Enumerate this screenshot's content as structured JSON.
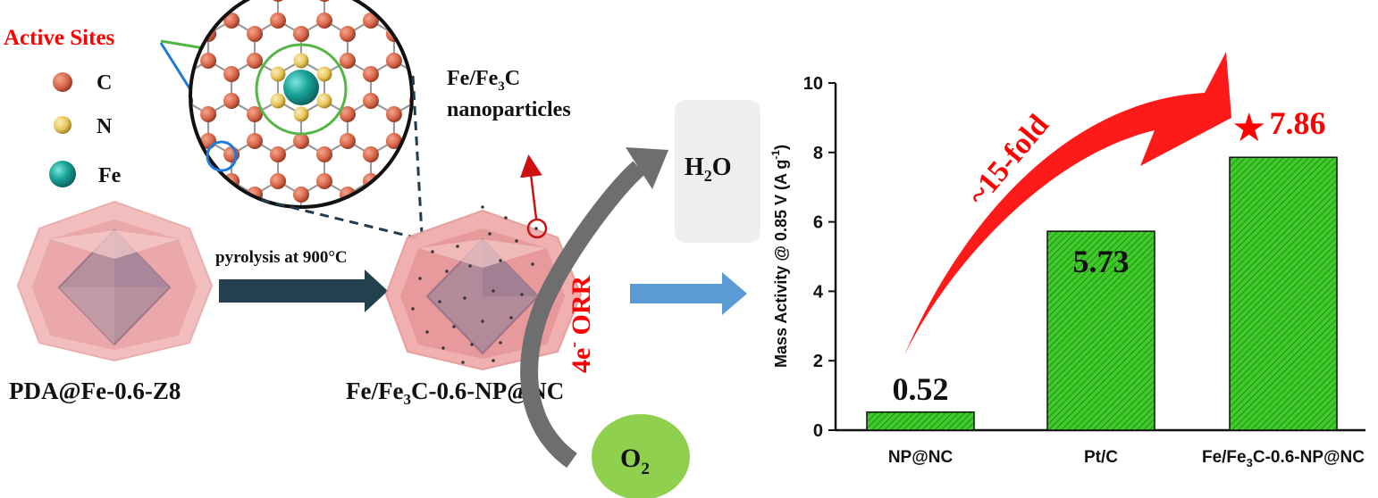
{
  "schematic": {
    "legend": {
      "active_sites": "Active Sites",
      "c": "C",
      "n": "N",
      "fe": "Fe",
      "colors": {
        "c": "#d9674a",
        "n": "#e8c65a",
        "fe": "#1aa39a"
      }
    },
    "precursor_label": "PDA@Fe-0.6-Z8",
    "pyrolysis_label": "pyrolysis at 900°C",
    "product_label": {
      "prefix": "Fe/Fe",
      "sub": "3",
      "suffix": "C-0.6-NP@NC"
    },
    "nanoparticles_label": {
      "line1_prefix": "Fe/Fe",
      "line1_sub": "3",
      "line1_suffix": "C",
      "line2": "nanoparticles"
    },
    "h2o_label": {
      "prefix": "H",
      "sub": "2",
      "suffix": "O"
    },
    "o2_label": {
      "prefix": "O",
      "sub": "2"
    },
    "orr_label": {
      "prefix": "4e",
      "sup": "-",
      "suffix": " ORR"
    }
  },
  "chart_data": {
    "type": "bar",
    "categories": [
      "NP@NC",
      "Pt/C",
      "Fe/Fe3C-0.6-NP@NC"
    ],
    "category_parts": [
      {
        "prefix": "NP@NC",
        "sub": "",
        "suffix": ""
      },
      {
        "prefix": "Pt/C",
        "sub": "",
        "suffix": ""
      },
      {
        "prefix": "Fe/Fe",
        "sub": "3",
        "suffix": "C-0.6-NP@NC"
      }
    ],
    "values": [
      0.52,
      5.73,
      7.86
    ],
    "value_labels": [
      "0.52",
      "5.73",
      "7.86"
    ],
    "ylabel": {
      "prefix": "Mass Activity @ 0.85 V (A g",
      "sup": "-1",
      "suffix": ")"
    },
    "ylim": [
      0,
      10
    ],
    "yticks": [
      0,
      2,
      4,
      6,
      8,
      10
    ],
    "bar_color": "#3fcc2a",
    "annotation": "~15-fold",
    "annotation_color": "#ff0000",
    "star_symbol": "★"
  }
}
